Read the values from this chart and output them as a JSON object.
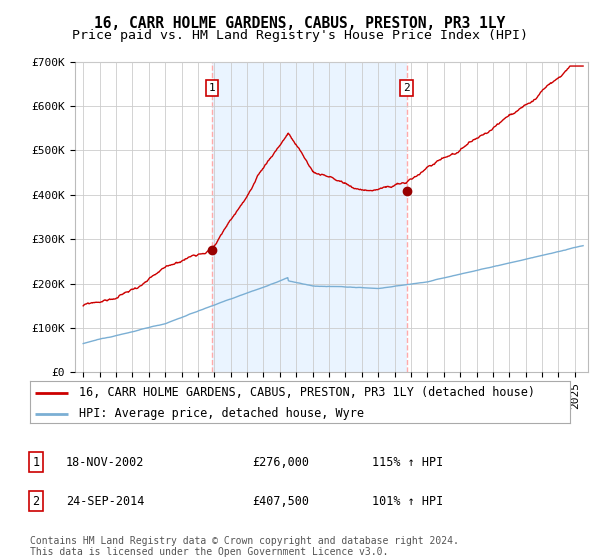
{
  "title": "16, CARR HOLME GARDENS, CABUS, PRESTON, PR3 1LY",
  "subtitle": "Price paid vs. HM Land Registry's House Price Index (HPI)",
  "ylim": [
    0,
    700000
  ],
  "yticks": [
    0,
    100000,
    200000,
    300000,
    400000,
    500000,
    600000,
    700000
  ],
  "ytick_labels": [
    "£0",
    "£100K",
    "£200K",
    "£300K",
    "£400K",
    "£500K",
    "£600K",
    "£700K"
  ],
  "sale1": {
    "date_float": 2002.88,
    "price": 276000,
    "label": "1",
    "date_str": "18-NOV-2002",
    "hpi_pct": "115% ↑ HPI"
  },
  "sale2": {
    "date_float": 2014.73,
    "price": 407500,
    "label": "2",
    "date_str": "24-SEP-2014",
    "hpi_pct": "101% ↑ HPI"
  },
  "red_line_color": "#cc0000",
  "blue_line_color": "#7bafd4",
  "sale_dot_color": "#990000",
  "vline_color": "#ffaaaa",
  "shade_color": "#ddeeff",
  "grid_color": "#cccccc",
  "legend_label_red": "16, CARR HOLME GARDENS, CABUS, PRESTON, PR3 1LY (detached house)",
  "legend_label_blue": "HPI: Average price, detached house, Wyre",
  "footer": "Contains HM Land Registry data © Crown copyright and database right 2024.\nThis data is licensed under the Open Government Licence v3.0.",
  "title_fontsize": 10.5,
  "subtitle_fontsize": 9.5,
  "tick_fontsize": 8,
  "legend_fontsize": 8.5,
  "footer_fontsize": 7,
  "background_color": "#ffffff",
  "xmin": 1994.5,
  "xmax": 2025.8
}
